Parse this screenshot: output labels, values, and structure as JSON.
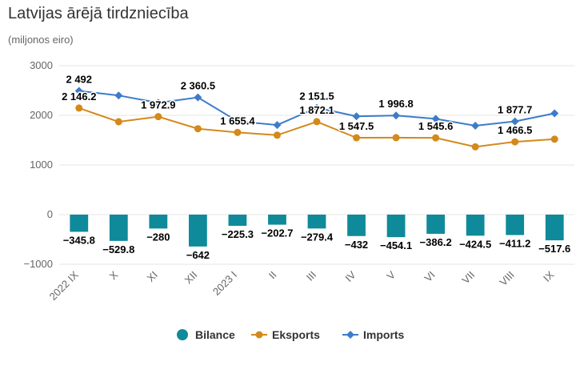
{
  "header": {
    "title": "Latvijas ārējā tirdzniecība",
    "subtitle": "(miljonos eiro)"
  },
  "chart_data": {
    "type": "bar",
    "title": "Latvijas ārējā tirdzniecība",
    "subtitle": "(miljonos eiro)",
    "categories": [
      "2022 IX",
      "X",
      "XI",
      "XII",
      "2023 I",
      "II",
      "III",
      "IV",
      "V",
      "VI",
      "VII",
      "VIII",
      "IX"
    ],
    "ylim": [
      -1000,
      3000
    ],
    "yticks": [
      -1000,
      0,
      1000,
      2000,
      3000
    ],
    "ytick_labels": [
      "−1000",
      "0",
      "1000",
      "2000",
      "3000"
    ],
    "grid": true,
    "legend_position": "bottom",
    "series": [
      {
        "name": "Bilance",
        "type": "bar",
        "color": "#0e8a9a",
        "values": [
          -345.8,
          -529.8,
          -280,
          -642,
          -225.3,
          -202.7,
          -279.4,
          -432,
          -454.1,
          -386.2,
          -424.5,
          -411.2,
          -517.6
        ],
        "labels": [
          "−345.8",
          "−529.8",
          "−280",
          "−642",
          "−225.3",
          "−202.7",
          "−279.4",
          "−432",
          "−454.1",
          "−386.2",
          "−424.5",
          "−411.2",
          "−517.6"
        ]
      },
      {
        "name": "Eksports",
        "type": "line",
        "color": "#d4891a",
        "values": [
          2146.2,
          1870,
          1972.9,
          1730,
          1655.4,
          1600,
          1872.1,
          1547.5,
          1550,
          1545.6,
          1365,
          1466.5,
          1520
        ],
        "labels": [
          "2 146.2",
          "",
          "1 972.9",
          "",
          "1 655.4",
          "",
          "1 872.1",
          "1 547.5",
          "",
          "1 545.6",
          "",
          "1 466.5",
          ""
        ]
      },
      {
        "name": "Imports",
        "type": "line",
        "color": "#3d7cc9",
        "values": [
          2492,
          2400,
          2252,
          2360.5,
          1880,
          1805,
          2151.5,
          1980,
          1996.8,
          1930,
          1790,
          1877.7,
          2040
        ],
        "labels": [
          "2 492",
          "",
          "",
          "2 360.5",
          "",
          "",
          "2 151.5",
          "",
          "1 996.8",
          "",
          "",
          "1 877.7",
          ""
        ]
      }
    ]
  }
}
